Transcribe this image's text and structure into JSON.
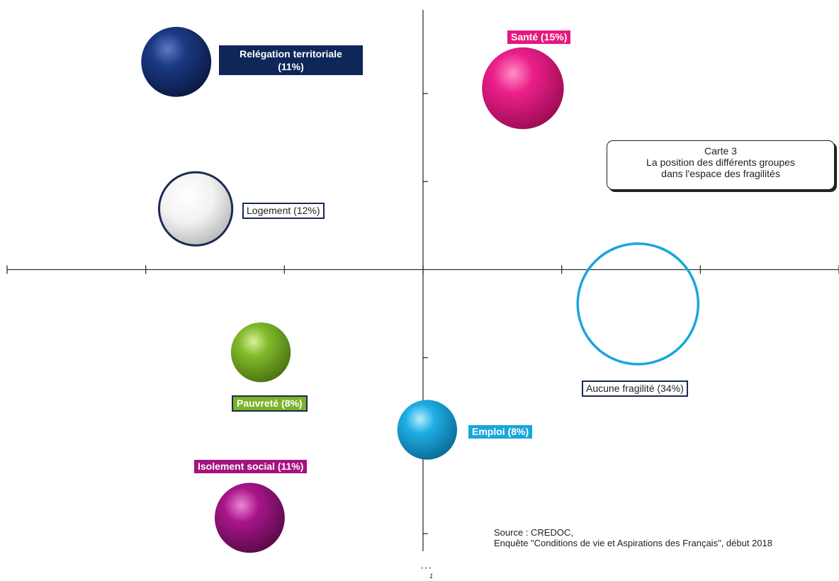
{
  "chart_data": {
    "type": "scatter",
    "title": "",
    "xlabel": "",
    "ylabel": "",
    "grid": false,
    "xlim": [
      -3,
      3
    ],
    "ylim": [
      -3.2,
      2.95
    ],
    "series": [
      {
        "label": "Relégation territoriale (11%)",
        "x": -1.78,
        "y": 2.36,
        "share": 11,
        "color": "#0f2659",
        "style": "filled"
      },
      {
        "label": "Santé (15%)",
        "x": 0.72,
        "y": 2.06,
        "share": 15,
        "color": "#e5187e",
        "style": "filled"
      },
      {
        "label": "Logement (12%)",
        "x": -1.64,
        "y": 0.69,
        "share": 12,
        "color": "#ffffff",
        "style": "outlined-sphere"
      },
      {
        "label": "Aucune fragilité (34%)",
        "x": 1.55,
        "y": -0.39,
        "share": 34,
        "color": "#1aa6dc",
        "style": "ring"
      },
      {
        "label": "Pauvreté (8%)",
        "x": -1.17,
        "y": -0.94,
        "share": 8,
        "color": "#7ab226",
        "style": "filled"
      },
      {
        "label": "Emploi (8%)",
        "x": 0.03,
        "y": -1.82,
        "share": 8,
        "color": "#1aa6dc",
        "style": "filled"
      },
      {
        "label": "Isolement social (11%)",
        "x": -1.25,
        "y": -2.82,
        "share": 11,
        "color": "#a3137f",
        "style": "filled"
      }
    ],
    "label_box": {
      "title_lines": [
        "Carte 3",
        "La position des différents groupes",
        "dans l'espace des fragilités"
      ]
    },
    "source_lines": [
      "Source : CREDOC,",
      "Enquête \"Conditions de vie et Aspirations des Français\", début 2018"
    ]
  },
  "labels": {
    "relegation_l1": "Relégation territoriale",
    "relegation_l2": "(11%)",
    "sante": "Santé (15%)",
    "logement": "Logement (12%)",
    "aucune": "Aucune fragilité (34%)",
    "pauvrete": "Pauvreté (8%)",
    "emploi": "Emploi (8%)",
    "isolement": "Isolement social (11%)"
  },
  "page": {
    "number": "1",
    "dots": "•••"
  }
}
